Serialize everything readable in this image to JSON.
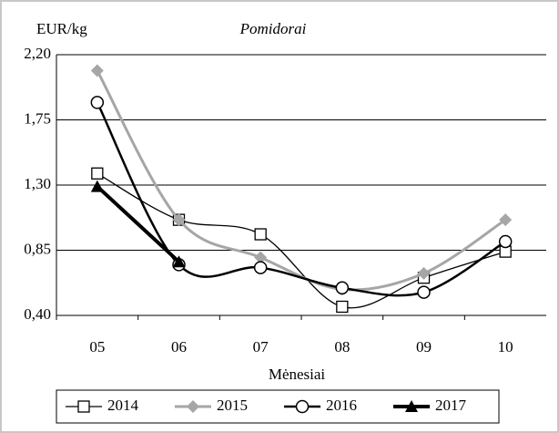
{
  "chart_data": {
    "type": "line",
    "title": "Pomidorai",
    "y_label": "EUR/kg",
    "x_label": "Mėnesiai",
    "categories": [
      "05",
      "06",
      "07",
      "08",
      "09",
      "10"
    ],
    "ylim": [
      0.4,
      2.2
    ],
    "yticks": [
      {
        "value": 0.4,
        "label": "0,40"
      },
      {
        "value": 0.85,
        "label": "0,85"
      },
      {
        "value": 1.3,
        "label": "1,30"
      },
      {
        "value": 1.75,
        "label": "1,75"
      },
      {
        "value": 2.2,
        "label": "2,20"
      }
    ],
    "grid": true,
    "legend": "bottom",
    "series": [
      {
        "name": "2014",
        "color": "#000000",
        "marker": "square",
        "values": [
          1.38,
          1.06,
          0.96,
          0.46,
          0.66,
          0.84
        ]
      },
      {
        "name": "2015",
        "color": "#a6a6a6",
        "marker": "diamond",
        "values": [
          2.09,
          1.06,
          0.8,
          0.58,
          0.69,
          1.06
        ]
      },
      {
        "name": "2016",
        "color": "#000000",
        "marker": "circle",
        "values": [
          1.87,
          0.75,
          0.73,
          0.59,
          0.56,
          0.91
        ]
      },
      {
        "name": "2017",
        "color": "#000000",
        "marker": "triangle",
        "values": [
          1.29,
          0.77,
          null,
          null,
          null,
          null
        ]
      }
    ]
  }
}
